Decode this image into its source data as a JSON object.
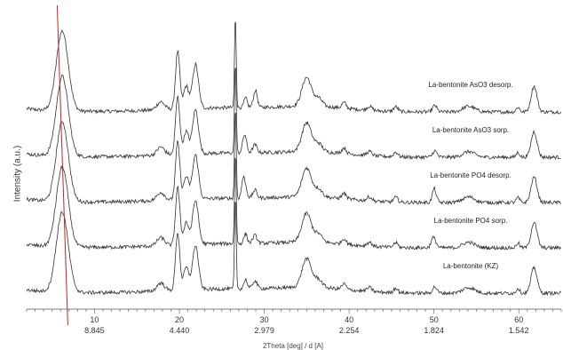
{
  "chart_data": {
    "type": "line",
    "title": "",
    "ylabel": "Intensity (a.u.)",
    "xlabel": "2Theta [deg] / d [A]",
    "xlim": [
      2,
      65
    ],
    "x_ticks": [
      {
        "value": 10,
        "label": "10",
        "d_label": "8.845"
      },
      {
        "value": 20,
        "label": "20",
        "d_label": "4.440"
      },
      {
        "value": 30,
        "label": "30",
        "d_label": "2.979"
      },
      {
        "value": 40,
        "label": "40",
        "d_label": "2.254"
      },
      {
        "value": 50,
        "label": "50",
        "d_label": "1.824"
      },
      {
        "value": 60,
        "label": "60",
        "d_label": "1.542"
      }
    ],
    "reference_line": {
      "x": 5.6,
      "color": "#cc2222"
    },
    "legend_position": "inline-right",
    "line_color": "#333333",
    "peaks": [
      {
        "x": 6.2,
        "h": 1.0,
        "w": 0.7
      },
      {
        "x": 17.8,
        "h": 0.1,
        "w": 0.45
      },
      {
        "x": 19.8,
        "h": 0.72,
        "w": 0.25
      },
      {
        "x": 20.8,
        "h": 0.28,
        "w": 0.3
      },
      {
        "x": 21.9,
        "h": 0.55,
        "w": 0.35
      },
      {
        "x": 26.6,
        "h": 1.15,
        "w": 0.1
      },
      {
        "x": 27.8,
        "h": 0.12,
        "w": 0.2
      },
      {
        "x": 28.9,
        "h": 0.1,
        "w": 0.25
      },
      {
        "x": 35.0,
        "h": 0.36,
        "w": 0.55
      },
      {
        "x": 36.4,
        "h": 0.1,
        "w": 0.45
      },
      {
        "x": 39.4,
        "h": 0.07,
        "w": 0.25
      },
      {
        "x": 42.4,
        "h": 0.05,
        "w": 0.3
      },
      {
        "x": 45.5,
        "h": 0.06,
        "w": 0.25
      },
      {
        "x": 50.1,
        "h": 0.08,
        "w": 0.25
      },
      {
        "x": 54.1,
        "h": 0.07,
        "w": 0.7
      },
      {
        "x": 59.9,
        "h": 0.06,
        "w": 0.2
      },
      {
        "x": 61.8,
        "h": 0.32,
        "w": 0.35
      }
    ],
    "series": [
      {
        "name": "La-bentonite AsO3 desorp.",
        "offset": 4,
        "extra_peaks": [
          {
            "x": 29.0,
            "h": 0.12,
            "w": 0.2
          }
        ]
      },
      {
        "name": "La-bentonite AsO3 sorp.",
        "offset": 3,
        "extra_peaks": [
          {
            "x": 27.6,
            "h": 0.14,
            "w": 0.2
          }
        ]
      },
      {
        "name": "La-bentonite PO4 desorp.",
        "offset": 2,
        "extra_peaks": [
          {
            "x": 27.5,
            "h": 0.22,
            "w": 0.18
          },
          {
            "x": 50.0,
            "h": 0.1,
            "w": 0.2
          }
        ]
      },
      {
        "name": "La-bentonite PO4 sorp.",
        "offset": 1,
        "extra_peaks": [
          {
            "x": 49.8,
            "h": 0.08,
            "w": 0.2
          }
        ]
      },
      {
        "name": "La-bentonite (KZ)",
        "offset": 0,
        "extra_peaks": []
      }
    ]
  }
}
